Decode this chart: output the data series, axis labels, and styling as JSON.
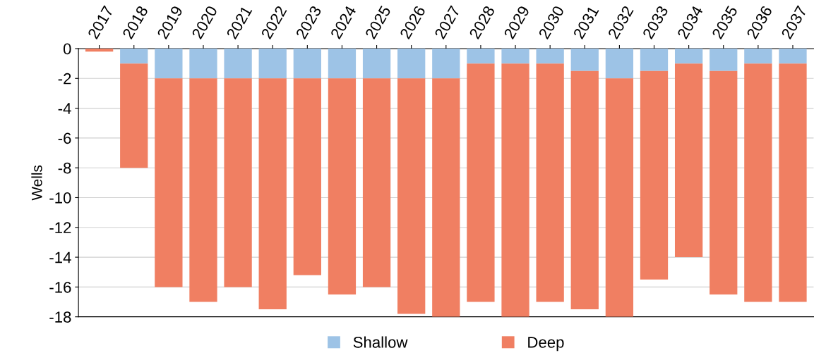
{
  "chart_data": {
    "type": "bar",
    "stacked": true,
    "ylabel": "Wells",
    "categories": [
      "2017",
      "2018",
      "2019",
      "2020",
      "2021",
      "2022",
      "2023",
      "2024",
      "2025",
      "2026",
      "2027",
      "2028",
      "2029",
      "2030",
      "2031",
      "2032",
      "2033",
      "2034",
      "2035",
      "2036",
      "2037"
    ],
    "series": [
      {
        "name": "Shallow",
        "color": "#9dc3e6",
        "values": [
          0,
          -1,
          -2,
          -2,
          -2,
          -2,
          -2,
          -2,
          -2,
          -2,
          -2,
          -1,
          -1,
          -1,
          -1.5,
          -2,
          -1.5,
          -1,
          -1.5,
          -1,
          -1
        ]
      },
      {
        "name": "Deep",
        "color": "#f07f62",
        "values": [
          -0.2,
          -7,
          -14,
          -15,
          -14,
          -15.5,
          -13.2,
          -14.5,
          -14,
          -15.8,
          -16,
          -16,
          -17,
          -16,
          -16,
          -16,
          -14,
          -13,
          -15,
          -16,
          -16
        ]
      }
    ],
    "ylim": [
      -18,
      0
    ],
    "yticks": [
      0,
      -2,
      -4,
      -6,
      -8,
      -10,
      -12,
      -14,
      -16,
      -18
    ],
    "grid": "y",
    "legend": "bottom"
  }
}
